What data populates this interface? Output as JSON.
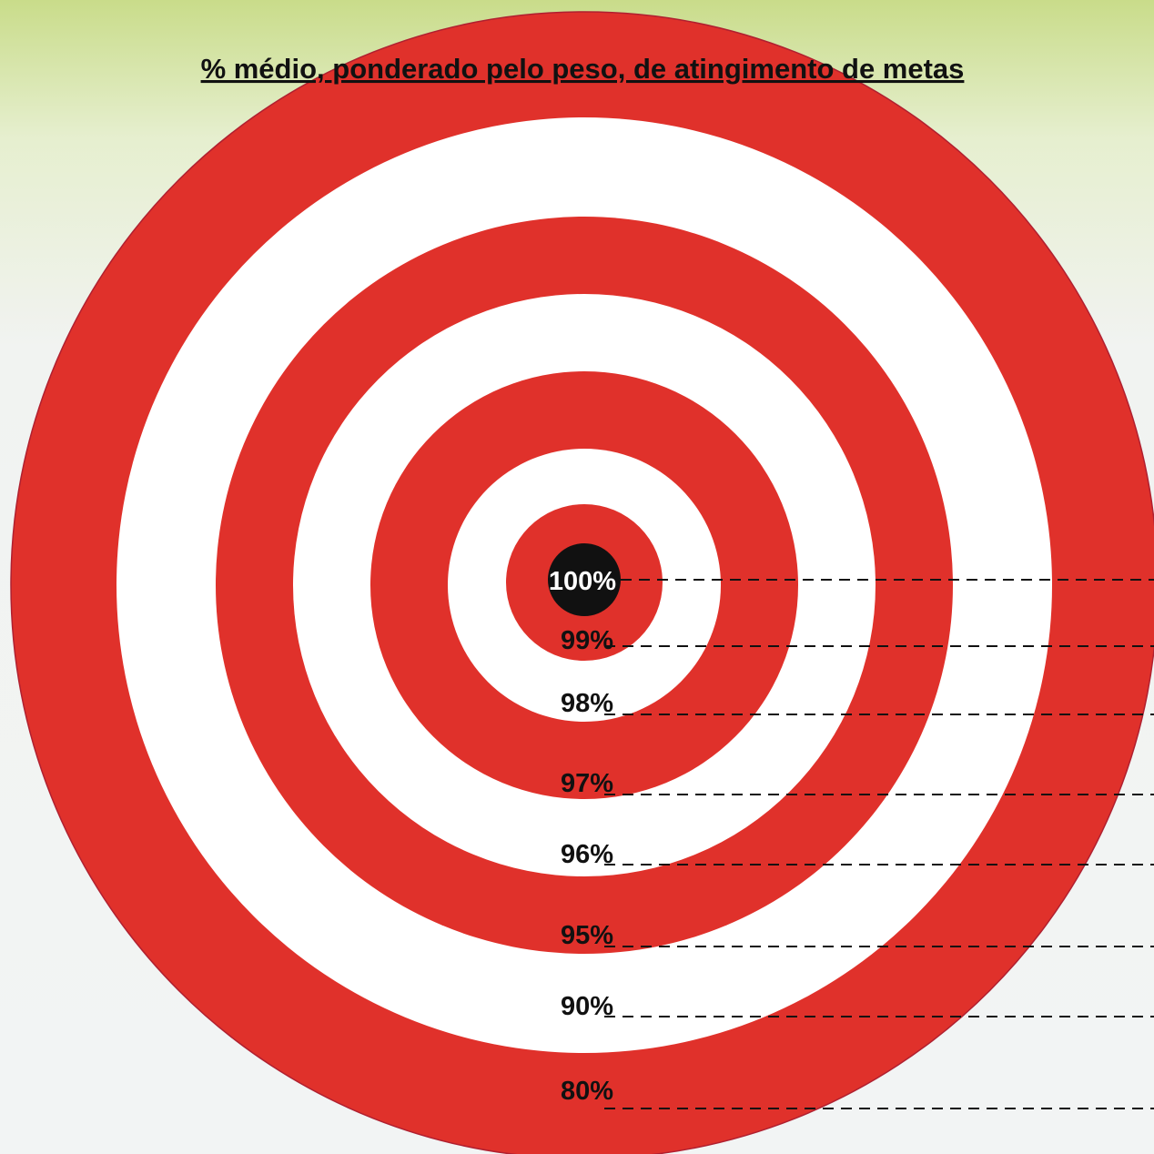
{
  "title": "% médio, ponderado pelo peso, de atingimento de metas",
  "labels": [
    "100%",
    "99%",
    "98%",
    "97%",
    "96%",
    "95%",
    "90%",
    "80%"
  ]
}
